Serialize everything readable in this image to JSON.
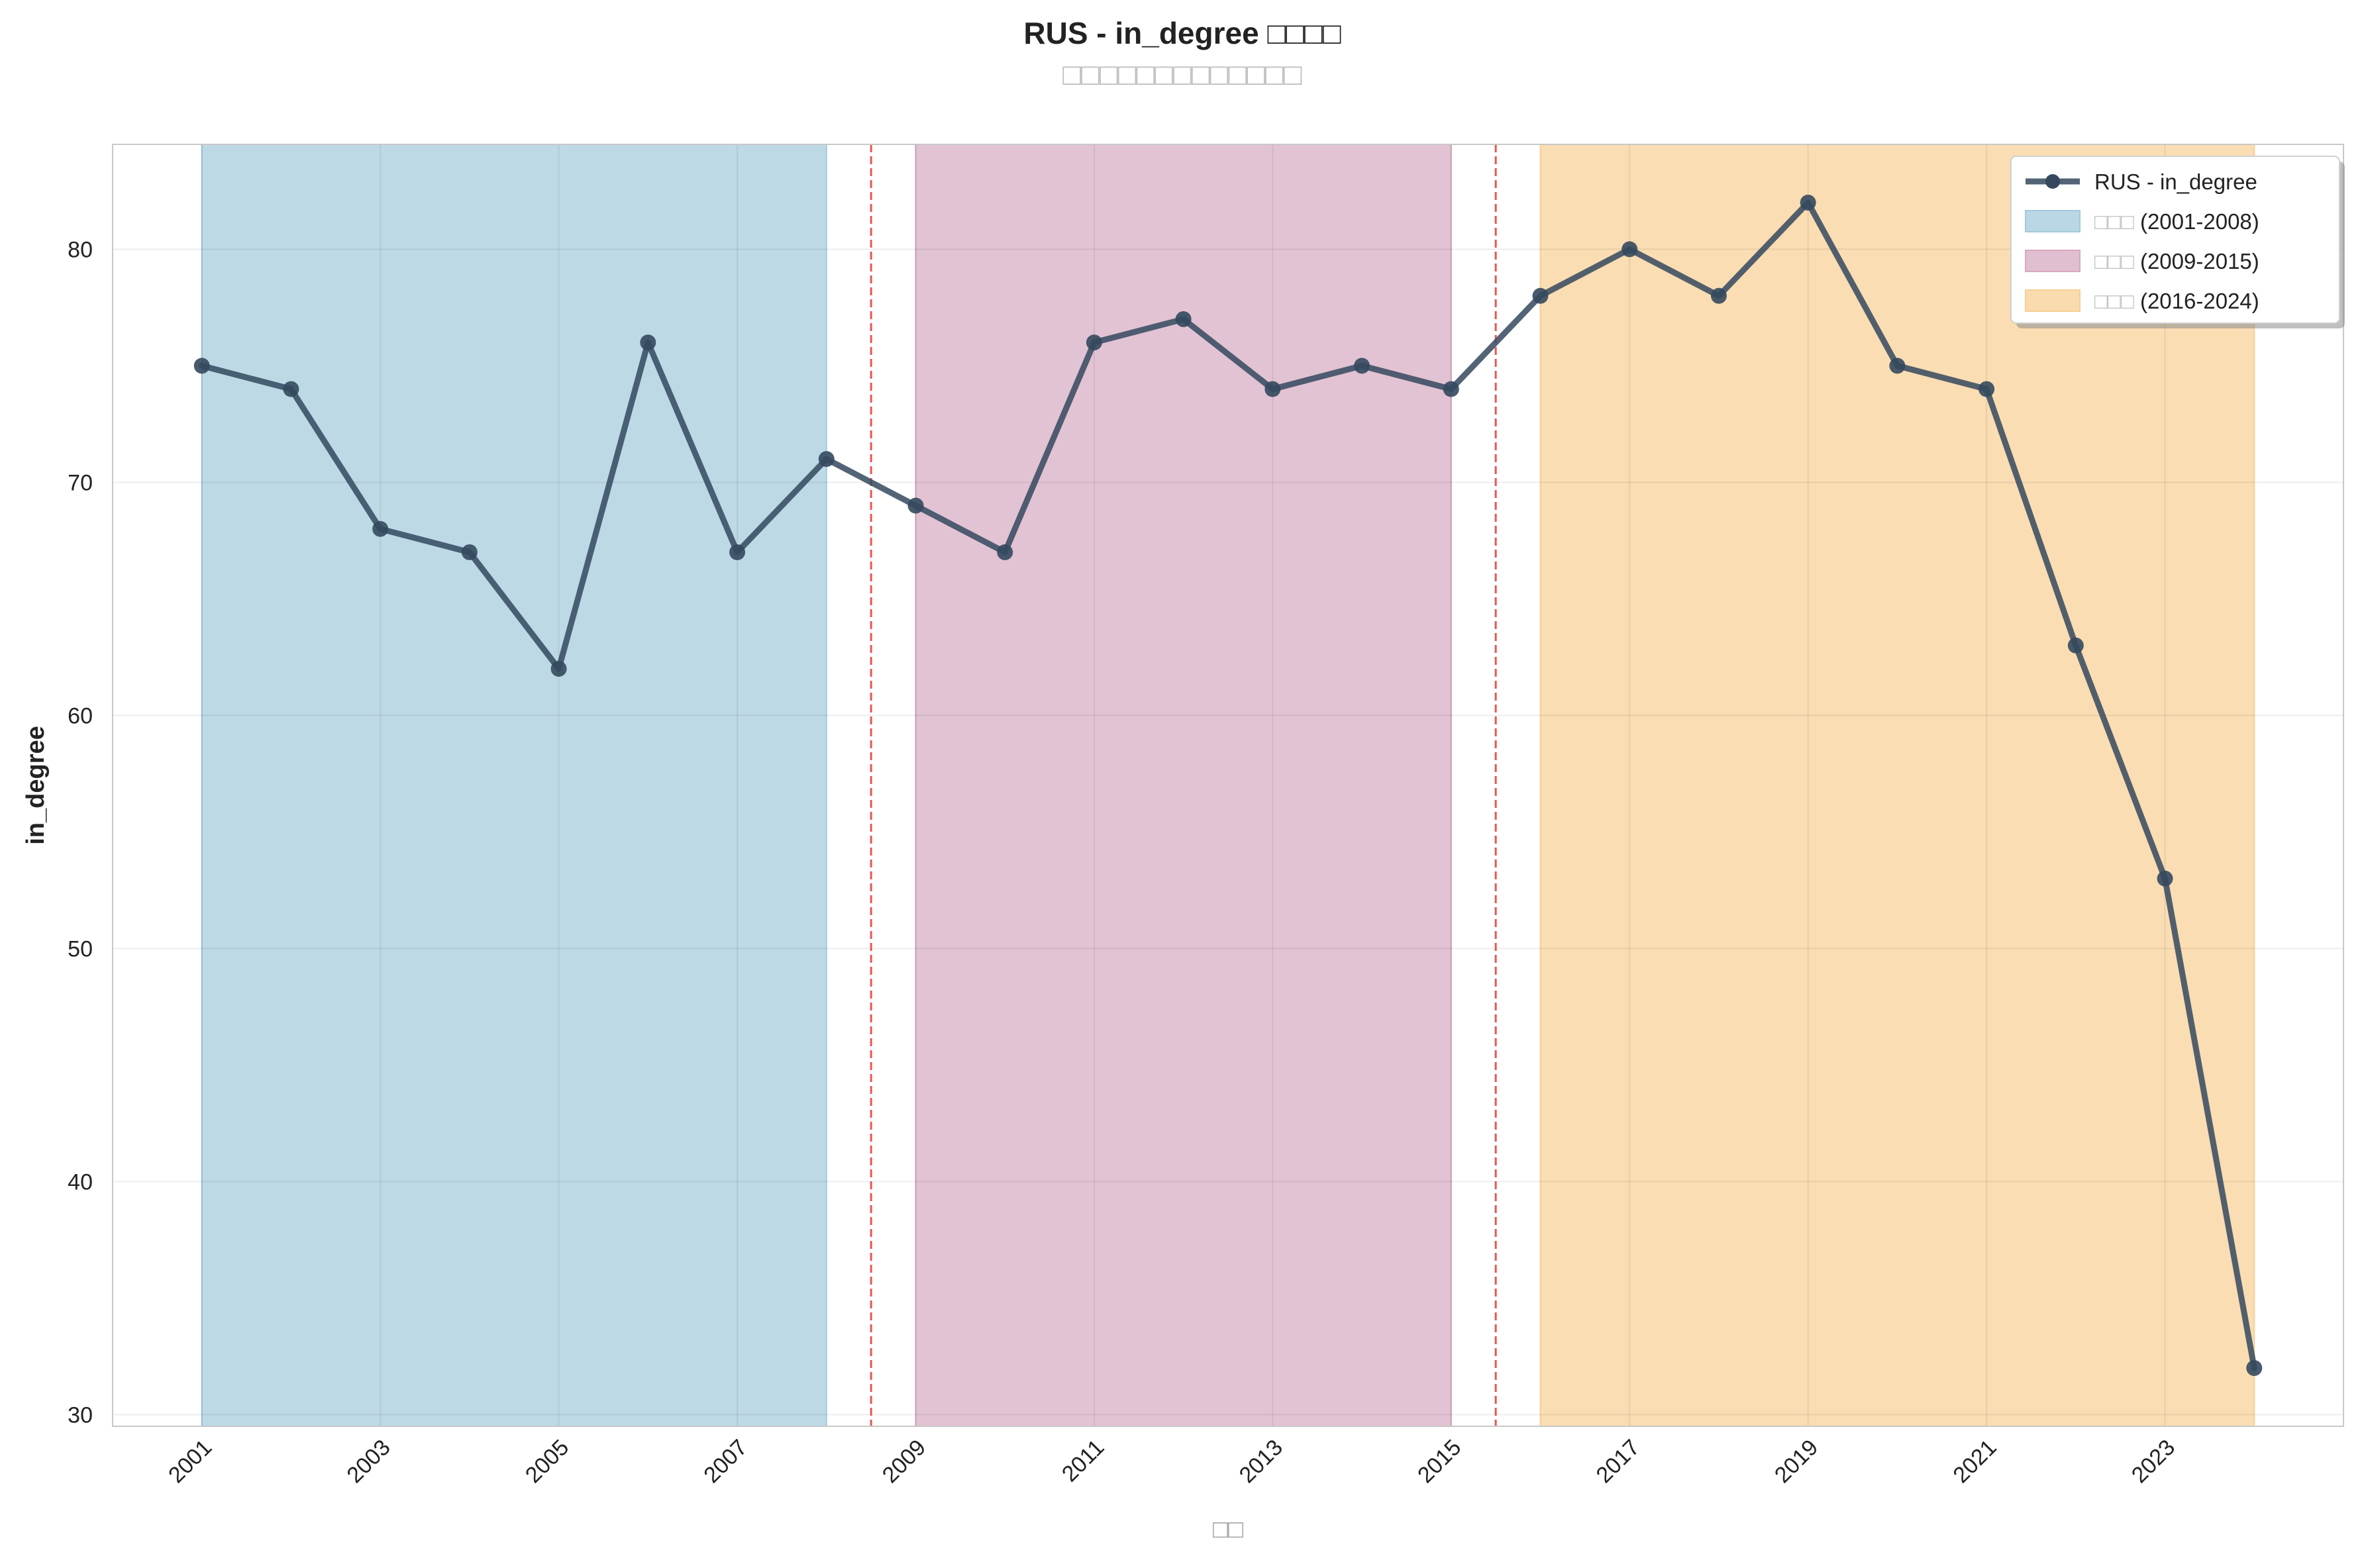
{
  "chart_data": {
    "type": "line",
    "title": "RUS - in_degree □□□□",
    "subtitle": "□□□□□□□□□□□□□",
    "xlabel": "□□",
    "ylabel": "in_degree",
    "xlim": [
      2000,
      2025
    ],
    "ylim": [
      29.5,
      84.5
    ],
    "x_ticks": [
      2001,
      2003,
      2005,
      2007,
      2009,
      2011,
      2013,
      2015,
      2017,
      2019,
      2021,
      2023
    ],
    "y_ticks": [
      30,
      40,
      50,
      60,
      70,
      80
    ],
    "grid": true,
    "legend_position": "top-right",
    "series": [
      {
        "name": "RUS - in_degree",
        "color": "#34495e",
        "x": [
          2001,
          2002,
          2003,
          2004,
          2005,
          2006,
          2007,
          2008,
          2009,
          2010,
          2011,
          2012,
          2013,
          2014,
          2015,
          2016,
          2017,
          2018,
          2019,
          2020,
          2021,
          2022,
          2023,
          2024
        ],
        "y": [
          75,
          74,
          68,
          67,
          62,
          76,
          67,
          71,
          69,
          67,
          76,
          77,
          74,
          75,
          74,
          78,
          80,
          78,
          82,
          75,
          74,
          63,
          53,
          32
        ]
      }
    ],
    "periods": [
      {
        "label_cjk": "□□□",
        "label_range": "(2001-2008)",
        "start": 2001,
        "end": 2008,
        "color": "#a3c9dc"
      },
      {
        "label_cjk": "□□□",
        "label_range": "(2009-2015)",
        "start": 2009,
        "end": 2015,
        "color": "#d6a9c0"
      },
      {
        "label_cjk": "□□□",
        "label_range": "(2016-2024)",
        "start": 2016,
        "end": 2024,
        "color": "#f8cf93"
      }
    ],
    "dividers": [
      2008.5,
      2015.5
    ],
    "divider_color": "#e53935"
  }
}
